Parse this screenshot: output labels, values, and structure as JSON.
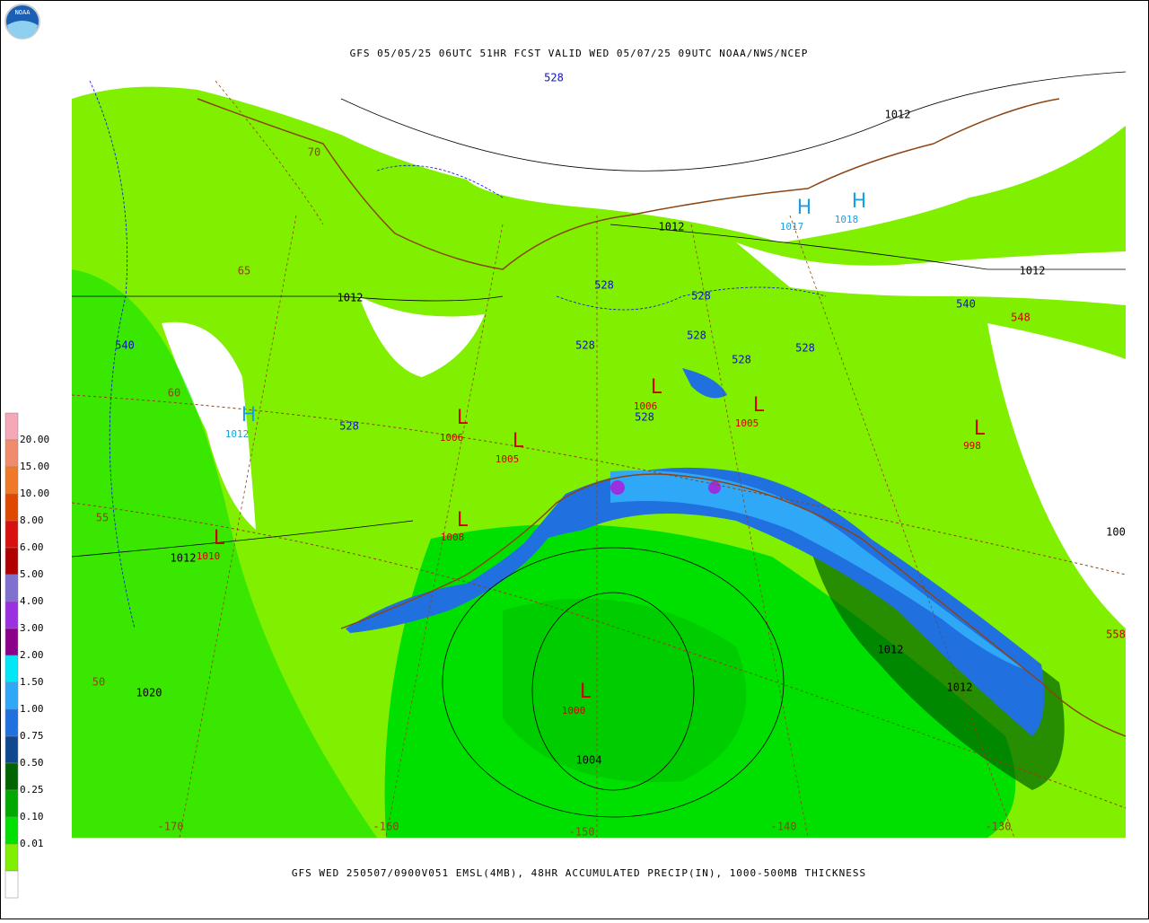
{
  "header": {
    "logo_text": "NOAA",
    "title": "GFS 05/05/25 06UTC 51HR FCST VALID WED 05/07/25 09UTC NOAA/NWS/NCEP"
  },
  "footer": "GFS WED 250507/0900V051 EMSL(4MB), 48HR ACCUMULATED PRECIP(IN), 1000-500MB THICKNESS",
  "legend": {
    "labels": [
      "20.00",
      "15.00",
      "10.00",
      "8.00",
      "6.00",
      "5.00",
      "4.00",
      "3.00",
      "2.00",
      "1.50",
      "1.00",
      "0.75",
      "0.50",
      "0.25",
      "0.10",
      "0.01"
    ],
    "colors": [
      "#f4a8b8",
      "#f08c6c",
      "#f07828",
      "#e04800",
      "#d81010",
      "#b00000",
      "#8070d0",
      "#9a30e0",
      "#8c008c",
      "#00e8f8",
      "#30a8f8",
      "#2070e0",
      "#104890",
      "#006400",
      "#00a800",
      "#00e000",
      "#80f000",
      "#ffffff"
    ]
  },
  "map": {
    "highs": [
      {
        "symbol": "H",
        "value": "1012"
      },
      {
        "symbol": "H",
        "value": "1017"
      },
      {
        "symbol": "H",
        "value": "1018"
      }
    ],
    "lows": [
      {
        "symbol": "L",
        "value": "1006"
      },
      {
        "symbol": "L",
        "value": "1005"
      },
      {
        "symbol": "L",
        "value": "1006"
      },
      {
        "symbol": "L",
        "value": "1005"
      },
      {
        "symbol": "L",
        "value": "1008"
      },
      {
        "symbol": "L",
        "value": "1010"
      },
      {
        "symbol": "L",
        "value": "998"
      },
      {
        "symbol": "L",
        "value": "1000"
      }
    ],
    "isobar_labels": [
      "1012",
      "1012",
      "1012",
      "1012",
      "1012",
      "1020",
      "1012",
      "1012",
      "1004",
      "100"
    ],
    "thickness_labels": [
      "528",
      "528",
      "528",
      "528",
      "528",
      "528",
      "528",
      "528",
      "528",
      "540",
      "540",
      "548",
      "558"
    ],
    "latitude_labels": [
      "70",
      "65",
      "60",
      "55",
      "50"
    ],
    "longitude_labels": [
      "-170",
      "-160",
      "-150",
      "-140",
      "-130"
    ]
  }
}
